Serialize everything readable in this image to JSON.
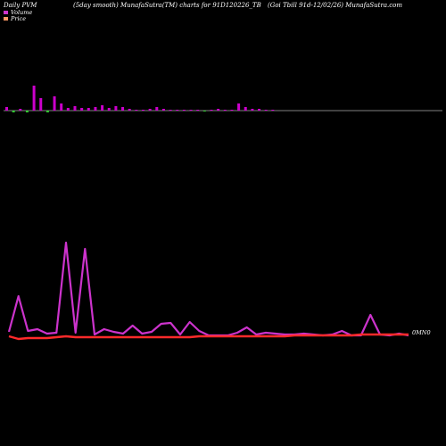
{
  "header": {
    "left": "Daily PVM",
    "center": "(5day smooth) MunafaSutra(TM) charts for 91D120226_TB",
    "right": "(Goi  Tbill 91d-12/02/26) MunafaSutra.com"
  },
  "legend": [
    {
      "label": "Volume",
      "color": "#cc33cc"
    },
    {
      "label": "Price",
      "color": "#ff9966"
    }
  ],
  "colors": {
    "volume_pos": "#cc00cc",
    "volume_neg": "#33cc33",
    "baseline": "#ffffff",
    "line_volume": "#cc33cc",
    "line_price": "#ff2a2a"
  },
  "chart_data": {
    "type": "line",
    "price_label": "0MN0",
    "volume_bars": [
      4,
      -2,
      2,
      -2,
      28,
      14,
      -2,
      16,
      8,
      3,
      5,
      3,
      3,
      4,
      6,
      3,
      5,
      4,
      2,
      1,
      1,
      2,
      4,
      2,
      1,
      1,
      1,
      1,
      1,
      -1,
      1,
      2,
      1,
      1,
      8,
      4,
      2,
      2,
      1,
      1
    ],
    "volume_line": [
      5,
      45,
      6,
      8,
      3,
      4,
      105,
      4,
      98,
      2,
      8,
      5,
      3,
      12,
      3,
      5,
      14,
      15,
      2,
      16,
      6,
      1,
      1,
      1,
      4,
      10,
      2,
      4,
      3,
      2,
      2,
      3,
      2,
      1,
      2,
      6,
      1,
      1,
      24,
      2,
      1,
      3,
      1
    ],
    "price_line": [
      0,
      -3,
      -2,
      -2,
      -2,
      -1,
      0,
      -1,
      -1,
      -1,
      -1,
      -1,
      -1,
      -1,
      -1,
      -1,
      -1,
      -1,
      -1,
      -1,
      0,
      0,
      0,
      0,
      0,
      0,
      0,
      0,
      0,
      0,
      1,
      1,
      1,
      1,
      1,
      1,
      1,
      2,
      2,
      2,
      2,
      2,
      2
    ]
  }
}
